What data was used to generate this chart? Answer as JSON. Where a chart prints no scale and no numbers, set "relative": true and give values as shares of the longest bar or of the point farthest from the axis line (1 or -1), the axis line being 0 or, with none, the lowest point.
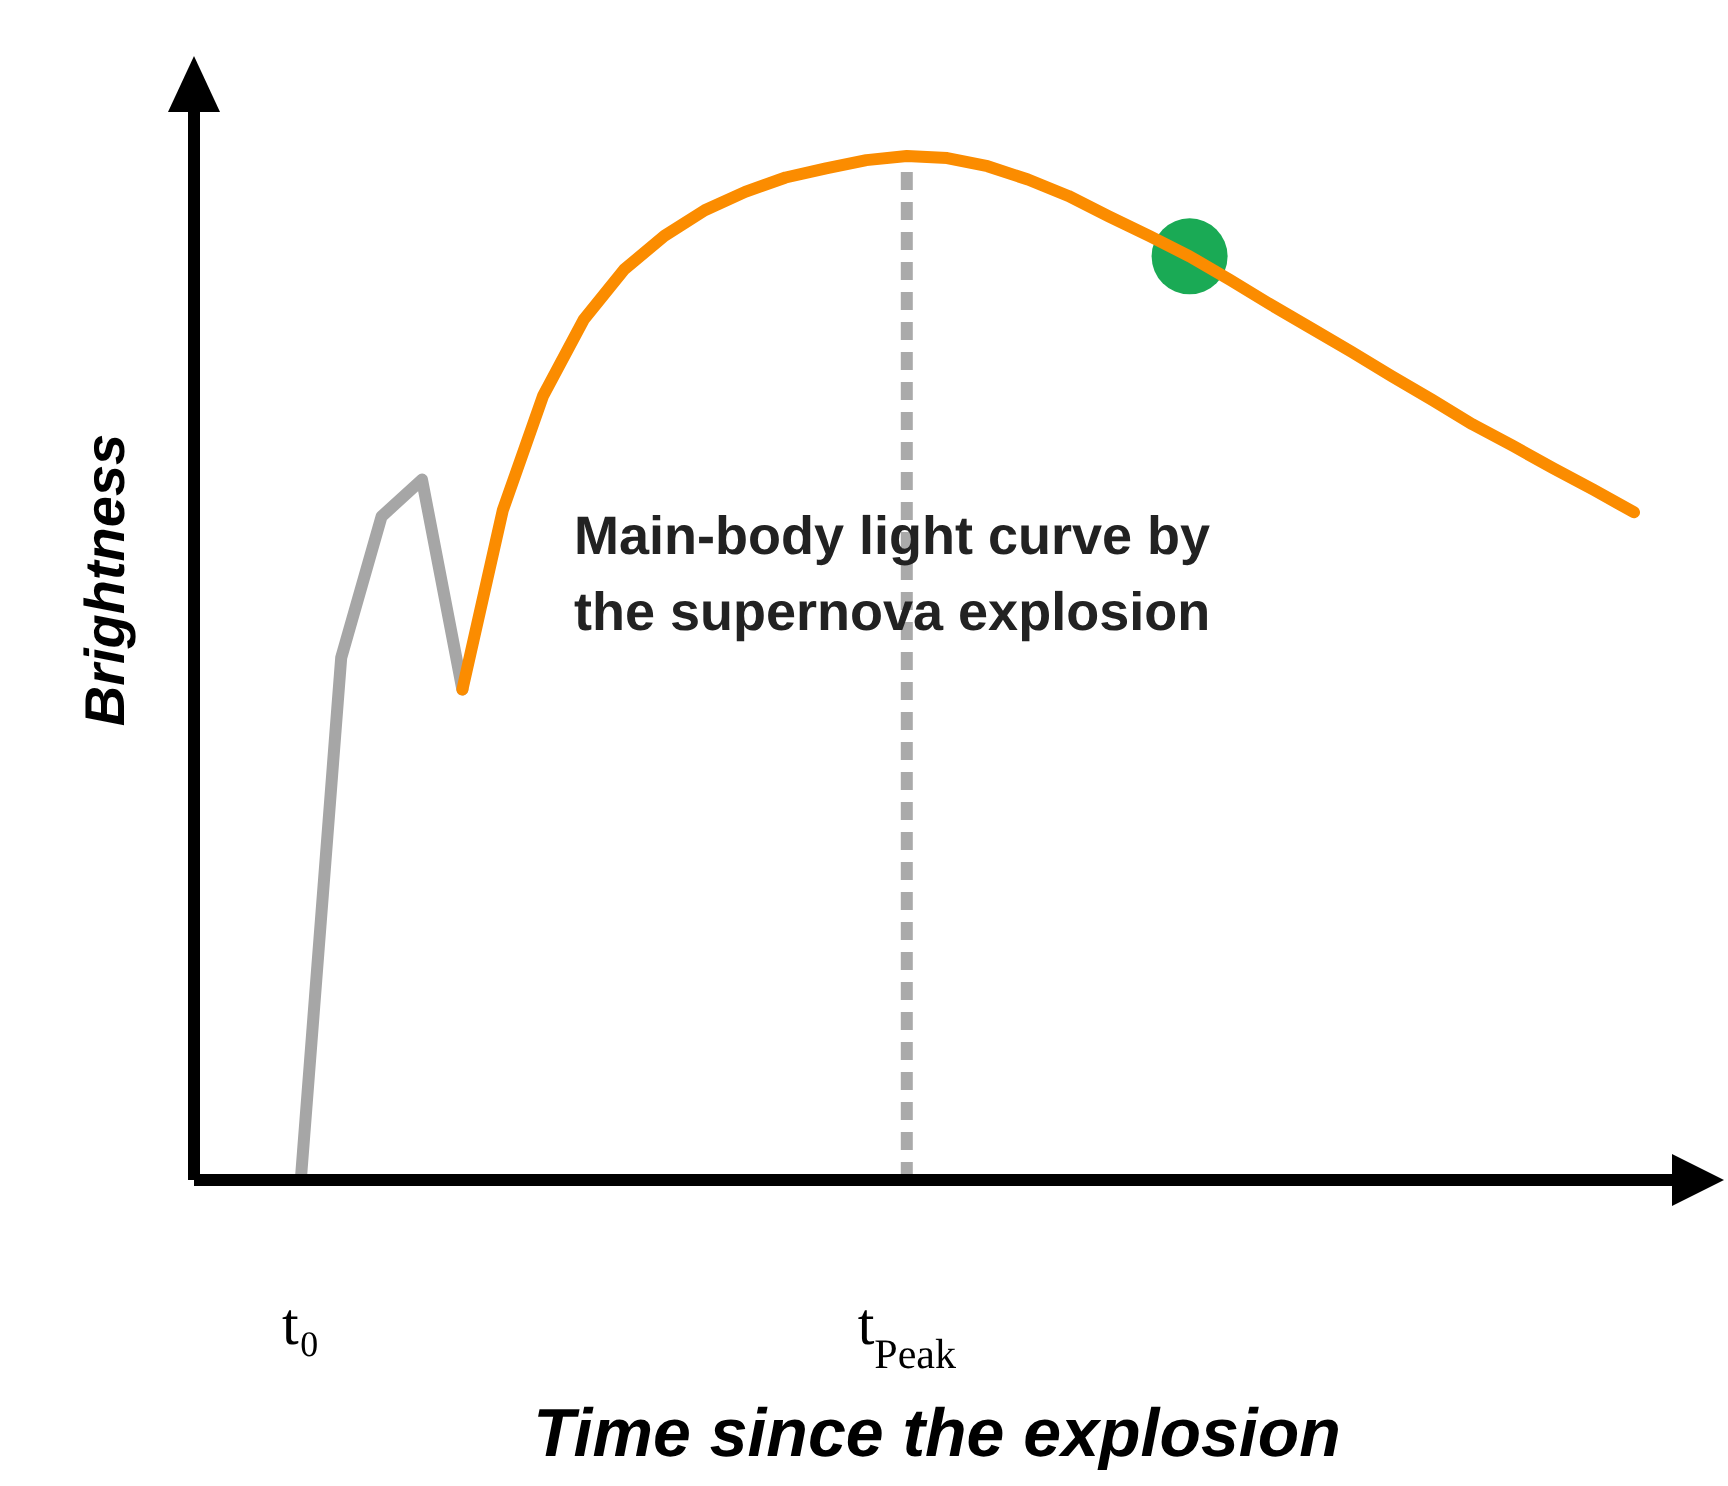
{
  "chart_data": {
    "type": "line",
    "relative": true,
    "xlabel": "Time since the explosion",
    "ylabel": "Brightness",
    "categories": [
      null,
      null,
      "t₀",
      null,
      null,
      null,
      null,
      null,
      null,
      null,
      null,
      null,
      null,
      null,
      null,
      null,
      null,
      "t$_{Peak}$",
      null,
      null,
      null,
      null,
      null,
      null,
      null,
      null,
      null,
      null,
      null,
      null,
      null,
      null,
      null,
      null,
      null,
      null
    ],
    "marker": "none",
    "line_style": "solid",
    "series": [
      {
        "color": "#a6a6a6",
        "values": [
          null,
          null,
          0,
          0.51,
          0.648,
          0.684,
          0.479,
          null,
          null,
          null,
          null,
          null,
          null,
          null,
          null,
          null,
          null,
          null,
          null,
          null,
          null,
          null,
          null,
          null,
          null,
          null,
          null,
          null,
          null,
          null,
          null,
          null,
          null,
          null,
          null,
          null
        ]
      },
      {
        "color": "#fb8c00",
        "values": [
          null,
          null,
          null,
          null,
          null,
          null,
          0.479,
          0.654,
          0.766,
          0.84,
          0.889,
          0.922,
          0.947,
          0.965,
          0.979,
          0.988,
          0.996,
          1,
          0.998,
          0.99,
          0.977,
          0.961,
          0.941,
          0.922,
          0.902,
          0.879,
          0.855,
          0.832,
          0.809,
          0.785,
          0.762,
          0.738,
          0.717,
          0.695,
          0.674,
          0.652
        ]
      },
      {
        "type": "scatter",
        "marker": "circle",
        "color": "#1aaa55",
        "values": [
          null,
          null,
          null,
          null,
          null,
          null,
          null,
          null,
          null,
          null,
          null,
          null,
          null,
          null,
          null,
          null,
          null,
          null,
          null,
          null,
          null,
          null,
          null,
          null,
          0.902,
          null,
          null,
          null,
          null,
          null,
          null,
          null,
          null,
          null,
          null,
          null
        ]
      }
    ],
    "ref_lines": [
      {
        "axis": "x",
        "value": "t$_{Peak}$",
        "color": "#aaaaaa",
        "line_style": "dashed"
      }
    ],
    "annotations": [
      "Main-body light curve by\nthe supernova explosion"
    ]
  }
}
